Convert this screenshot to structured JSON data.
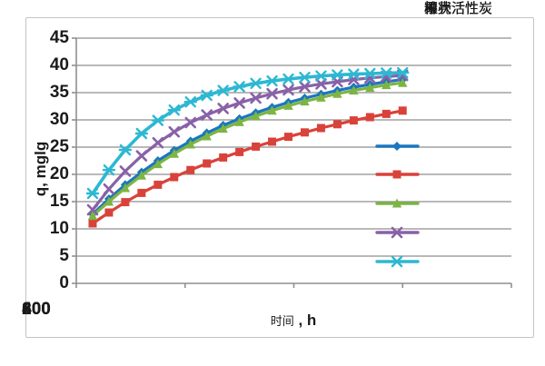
{
  "figure": {
    "background": "#ffffff",
    "border_color": "#c3c3c3",
    "gridline_color": "#8f8f8f",
    "text_color": "#1a1a1a"
  },
  "chart_data": {
    "type": "line",
    "title": "",
    "ylabel": "q, mglg",
    "xlabel_zh": "时间",
    "xlabel_unit": " , h",
    "xlim": [
      0,
      800
    ],
    "ylim": [
      0,
      45
    ],
    "grid": "horizontal-major-only",
    "legend_position": "right-inside",
    "xticks": [
      0,
      200,
      400,
      600,
      800
    ],
    "yticks": [
      45,
      40,
      35,
      30,
      25,
      20,
      15,
      10,
      5,
      0
    ],
    "x": [
      30,
      60,
      90,
      120,
      150,
      180,
      210,
      240,
      270,
      300,
      330,
      360,
      390,
      420,
      450,
      480,
      510,
      540,
      570,
      600
    ],
    "series": [
      {
        "name": "粒状活性炭",
        "color": "#1b76be",
        "marker": "diamond",
        "values": [
          12.7,
          15.5,
          18.1,
          20.4,
          22.5,
          24.4,
          26.1,
          27.6,
          29.0,
          30.2,
          31.3,
          32.3,
          33.2,
          34.0,
          34.7,
          35.4,
          36.0,
          36.5,
          37.0,
          37.4
        ]
      },
      {
        "name": "椰壳活性炭",
        "color": "#d9423a",
        "marker": "square",
        "values": [
          11.0,
          13.0,
          14.9,
          16.6,
          18.1,
          19.5,
          20.8,
          22.0,
          23.1,
          24.1,
          25.1,
          26.0,
          26.9,
          27.7,
          28.5,
          29.2,
          29.9,
          30.5,
          31.1,
          31.7
        ]
      },
      {
        "name": "果壳活性炭",
        "color": "#7cb544",
        "marker": "triangle",
        "values": [
          12.4,
          15.0,
          17.5,
          19.8,
          21.9,
          23.8,
          25.5,
          27.0,
          28.4,
          29.6,
          30.7,
          31.7,
          32.6,
          33.4,
          34.1,
          34.8,
          35.4,
          35.9,
          36.4,
          36.8
        ]
      },
      {
        "name": "粉状活性炭",
        "color": "#8961a7",
        "marker": "x",
        "values": [
          13.5,
          17.3,
          20.6,
          23.4,
          25.8,
          27.8,
          29.5,
          30.9,
          32.1,
          33.1,
          34.0,
          34.8,
          35.5,
          36.1,
          36.6,
          37.0,
          37.4,
          37.7,
          37.95,
          38.15
        ]
      },
      {
        "name": "柱状活性炭",
        "color": "#2cb8d2",
        "marker": "asterisk",
        "values": [
          16.5,
          20.8,
          24.5,
          27.5,
          29.9,
          31.8,
          33.3,
          34.5,
          35.4,
          36.1,
          36.7,
          37.15,
          37.5,
          37.8,
          38.05,
          38.25,
          38.4,
          38.5,
          38.6,
          38.65
        ]
      }
    ]
  }
}
